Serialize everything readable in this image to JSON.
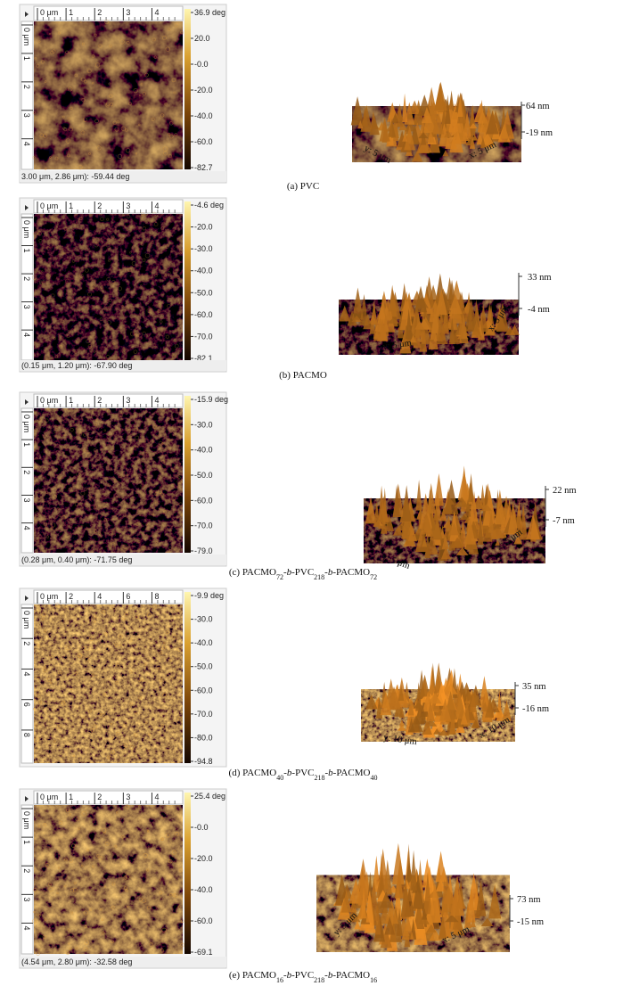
{
  "panels": [
    {
      "top_ruler": [
        "0 μm",
        "1",
        "2",
        "3",
        "4"
      ],
      "left_ruler": [
        "0 μm",
        "1",
        "2",
        "3",
        "4"
      ],
      "colorbar": [
        "36.9 deg",
        "20.0",
        "-0.0",
        "-20.0",
        "-40.0",
        "-60.0",
        "-82.7"
      ],
      "status": "3.00 μm, 2.86 μm): -59.44 deg",
      "surface": {
        "z_max": "64 nm",
        "z_min": "-19 nm",
        "y_label": "y: 5 μm",
        "x_label": "x: 5 μm"
      },
      "caption": {
        "parts": [
          {
            "text": "(a) PVC",
            "style": "normal"
          }
        ]
      }
    },
    {
      "top_ruler": [
        "0 μm",
        "1",
        "2",
        "3",
        "4"
      ],
      "left_ruler": [
        "0 μm",
        "1",
        "2",
        "3",
        "4"
      ],
      "colorbar": [
        "-4.6 deg",
        "-20.0",
        "-30.0",
        "-40.0",
        "-50.0",
        "-60.0",
        "-70.0",
        "-82.1"
      ],
      "status": "(0.15 μm, 1.20 μm): -67.90 deg",
      "surface": {
        "z_max": "33 nm",
        "z_min": "-4 nm",
        "y_label": "y: 5 μm",
        "x_label": "x: 5 μm"
      },
      "caption": {
        "parts": [
          {
            "text": "(b) PACMO",
            "style": "normal"
          }
        ]
      }
    },
    {
      "top_ruler": [
        "0 μm",
        "1",
        "2",
        "3",
        "4"
      ],
      "left_ruler": [
        "0 μm",
        "1",
        "2",
        "3",
        "4"
      ],
      "colorbar": [
        "-15.9 deg",
        "-30.0",
        "-40.0",
        "-50.0",
        "-60.0",
        "-70.0",
        "-79.0"
      ],
      "status": "(0.28 μm, 0.40 μm): -71.75 deg",
      "surface": {
        "z_max": "22 nm",
        "z_min": "-7 nm",
        "y_label": "y: 5 μm",
        "x_label": "x: 5 μm"
      },
      "caption": {
        "parts": [
          {
            "text": "(c) PACMO",
            "style": "normal"
          },
          {
            "text": "72",
            "style": "sub"
          },
          {
            "text": "-",
            "style": "normal"
          },
          {
            "text": "b",
            "style": "italic"
          },
          {
            "text": "-PVC",
            "style": "normal"
          },
          {
            "text": "218",
            "style": "sub"
          },
          {
            "text": "-",
            "style": "normal"
          },
          {
            "text": "b",
            "style": "italic"
          },
          {
            "text": "-PACMO",
            "style": "normal"
          },
          {
            "text": "72",
            "style": "sub"
          }
        ]
      }
    },
    {
      "top_ruler": [
        "0 μm",
        "2",
        "4",
        "6",
        "8"
      ],
      "left_ruler": [
        "0 μm",
        "2",
        "4",
        "6",
        "8"
      ],
      "colorbar": [
        "-9.9 deg",
        "-30.0",
        "-40.0",
        "-50.0",
        "-60.0",
        "-70.0",
        "-80.0",
        "-94.8"
      ],
      "surface": {
        "z_max": "35 nm",
        "z_min": "-16 nm",
        "y_label": "y: 10 μm",
        "x_label": "x: 10 μm"
      },
      "caption": {
        "parts": [
          {
            "text": "(d) PACMO",
            "style": "normal"
          },
          {
            "text": "40",
            "style": "sub"
          },
          {
            "text": "-",
            "style": "normal"
          },
          {
            "text": "b",
            "style": "italic"
          },
          {
            "text": "-PVC",
            "style": "normal"
          },
          {
            "text": "218",
            "style": "sub"
          },
          {
            "text": "-",
            "style": "normal"
          },
          {
            "text": "b",
            "style": "italic"
          },
          {
            "text": "-PACMO",
            "style": "normal"
          },
          {
            "text": "40",
            "style": "sub"
          }
        ]
      }
    },
    {
      "top_ruler": [
        "0 μm",
        "1",
        "2",
        "3",
        "4"
      ],
      "left_ruler": [
        "0 μm",
        "1",
        "2",
        "3",
        "4"
      ],
      "colorbar": [
        "25.4 deg",
        "-0.0",
        "-20.0",
        "-40.0",
        "-60.0",
        "-69.1"
      ],
      "status": "(4.54 μm, 2.80 μm): -32.58 deg",
      "surface": {
        "z_max": "73 nm",
        "z_min": "-15 nm",
        "y_label": "y: 5 μm",
        "x_label": "x: 5 μm"
      },
      "caption": {
        "parts": [
          {
            "text": "(e) PACMO",
            "style": "normal"
          },
          {
            "text": "16",
            "style": "sub"
          },
          {
            "text": "-",
            "style": "normal"
          },
          {
            "text": "b",
            "style": "italic"
          },
          {
            "text": "-PVC",
            "style": "normal"
          },
          {
            "text": "218",
            "style": "sub"
          },
          {
            "text": "-",
            "style": "normal"
          },
          {
            "text": "b",
            "style": "italic"
          },
          {
            "text": "-PACMO",
            "style": "normal"
          },
          {
            "text": "16",
            "style": "sub"
          }
        ]
      }
    }
  ]
}
